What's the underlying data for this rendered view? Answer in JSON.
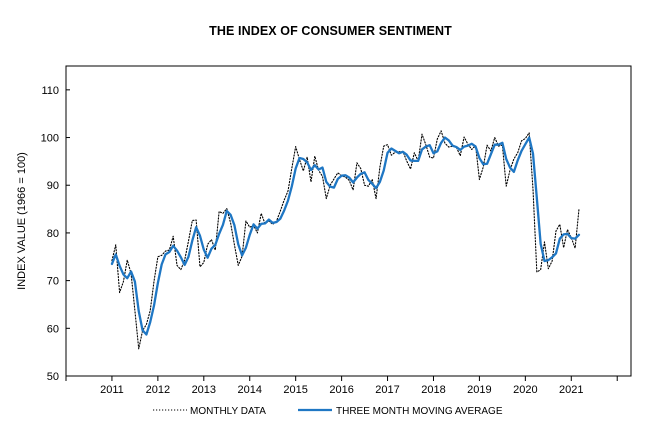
{
  "chart_data": {
    "type": "line",
    "title": "THE INDEX OF CONSUMER SENTIMENT",
    "xlabel": "",
    "ylabel": "INDEX VALUE (1966 = 100)",
    "ylim": [
      50,
      115
    ],
    "yticks": [
      50,
      60,
      70,
      80,
      90,
      100,
      110
    ],
    "xlim": [
      2010.0,
      2022.3
    ],
    "xticks": [
      2011,
      2012,
      2013,
      2014,
      2015,
      2016,
      2017,
      2018,
      2019,
      2020,
      2021
    ],
    "grid": false,
    "legend_position": "bottom",
    "x_start": "2011-01",
    "series": [
      {
        "name": "MONTHLY DATA",
        "style": "dotted",
        "color": "#000000",
        "values": [
          74.2,
          77.5,
          67.5,
          69.8,
          74.3,
          71.5,
          63.7,
          55.7,
          59.5,
          60.8,
          63.7,
          69.9,
          75.0,
          75.3,
          76.2,
          76.4,
          79.3,
          73.2,
          72.3,
          74.3,
          78.3,
          82.6,
          82.7,
          72.9,
          73.8,
          77.6,
          78.6,
          76.4,
          84.5,
          84.1,
          85.1,
          82.1,
          77.5,
          73.2,
          75.1,
          82.5,
          81.2,
          81.6,
          80.0,
          84.1,
          81.9,
          82.5,
          81.8,
          82.5,
          84.6,
          86.9,
          88.8,
          93.6,
          98.1,
          95.4,
          93.0,
          95.9,
          90.7,
          96.1,
          93.1,
          91.9,
          87.2,
          90.0,
          91.3,
          92.6,
          92.0,
          91.7,
          91.0,
          89.0,
          94.7,
          93.5,
          90.0,
          89.8,
          91.2,
          87.2,
          93.8,
          98.2,
          98.5,
          96.3,
          96.9,
          97.0,
          97.1,
          95.1,
          93.4,
          96.8,
          95.1,
          100.7,
          98.5,
          95.9,
          95.7,
          99.7,
          101.4,
          98.8,
          98.0,
          98.2,
          97.9,
          96.2,
          100.1,
          98.6,
          97.5,
          98.3,
          91.2,
          93.8,
          98.4,
          97.2,
          100.0,
          98.2,
          98.4,
          89.8,
          93.2,
          95.5,
          96.8,
          99.3,
          99.8,
          101.0,
          89.1,
          71.8,
          72.3,
          78.1,
          72.5,
          74.1,
          80.4,
          81.8,
          76.9,
          80.7,
          79.0,
          76.8,
          84.9
        ]
      },
      {
        "name": "THREE MONTH MOVING AVERAGE",
        "style": "solid",
        "color": "#1f77c4",
        "values": [
          73.5,
          75.5,
          73.1,
          71.3,
          70.5,
          71.9,
          69.8,
          63.6,
          59.6,
          58.7,
          61.3,
          64.8,
          69.5,
          73.4,
          75.5,
          76.0,
          77.3,
          76.3,
          74.9,
          73.3,
          75.0,
          78.4,
          81.2,
          79.4,
          76.5,
          74.8,
          76.7,
          77.5,
          79.8,
          81.7,
          84.6,
          83.8,
          81.6,
          77.6,
          75.3,
          76.9,
          79.6,
          81.8,
          80.9,
          81.9,
          82.0,
          82.8,
          82.1,
          82.3,
          83.0,
          84.7,
          86.8,
          89.8,
          93.5,
          95.7,
          95.5,
          94.8,
          93.2,
          94.2,
          93.3,
          93.7,
          90.7,
          89.7,
          89.5,
          91.3,
          92.0,
          92.1,
          91.6,
          90.6,
          91.6,
          92.4,
          92.7,
          91.1,
          90.3,
          89.4,
          90.7,
          93.1,
          96.8,
          97.7,
          97.2,
          96.7,
          97.0,
          96.4,
          95.2,
          95.1,
          95.1,
          97.5,
          98.1,
          98.4,
          96.7,
          97.1,
          98.9,
          100.0,
          99.4,
          98.3,
          98.0,
          97.4,
          98.1,
          98.3,
          98.7,
          98.1,
          95.7,
          94.4,
          94.5,
          96.5,
          98.5,
          98.5,
          98.9,
          95.5,
          93.7,
          92.8,
          95.2,
          97.2,
          98.6,
          100.0,
          96.6,
          87.3,
          77.7,
          74.1,
          74.3,
          74.9,
          75.7,
          78.8,
          79.7,
          79.8,
          78.9,
          78.8,
          79.6
        ]
      }
    ]
  }
}
